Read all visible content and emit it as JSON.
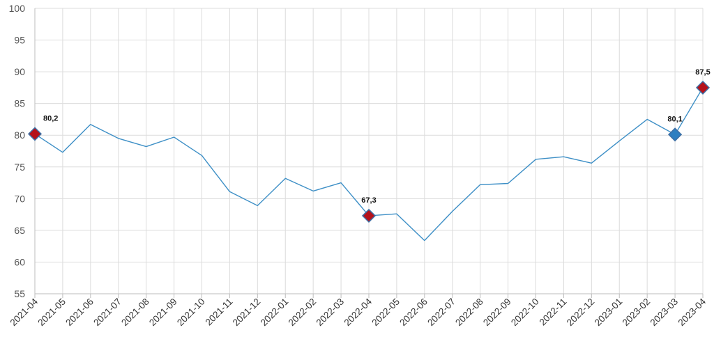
{
  "chart_data": {
    "type": "line",
    "title": "",
    "xlabel": "",
    "ylabel": "",
    "ylim": [
      55,
      100
    ],
    "yticks": [
      55,
      60,
      65,
      70,
      75,
      80,
      85,
      90,
      95,
      100
    ],
    "grid": true,
    "x": [
      "2021-04",
      "2021-05",
      "2021-06",
      "2021-07",
      "2021-08",
      "2021-09",
      "2021-10",
      "2021-11",
      "2021-12",
      "2022-01",
      "2022-02",
      "2022-03",
      "2022-04",
      "2022-05",
      "2022-06",
      "2022-07",
      "2022-08",
      "2022-09",
      "2022-10",
      "2022-11",
      "2022-12",
      "2023-01",
      "2023-02",
      "2023-03",
      "2023-04"
    ],
    "series": [
      {
        "values": [
          80.2,
          77.3,
          81.7,
          79.5,
          78.2,
          79.7,
          76.8,
          71.1,
          68.9,
          73.2,
          71.2,
          72.5,
          67.3,
          67.6,
          63.4,
          68.0,
          72.2,
          72.4,
          76.2,
          76.6,
          75.6,
          79.1,
          82.5,
          80.1,
          87.5
        ],
        "color": "#3d8fc6"
      }
    ],
    "markers": [
      {
        "index": 0,
        "label": "80,2",
        "fill": "#b5121b",
        "shape": "diamond"
      },
      {
        "index": 12,
        "label": "67,3",
        "fill": "#b5121b",
        "shape": "diamond"
      },
      {
        "index": 23,
        "label": "80,1",
        "fill": "#2e7fc1",
        "shape": "diamond"
      },
      {
        "index": 24,
        "label": "87,5",
        "fill": "#b5121b",
        "shape": "diamond"
      }
    ],
    "colors": {
      "line": "#3d8fc6",
      "marker_border": "#3d6fa5",
      "grid": "#dcdcdc"
    }
  }
}
